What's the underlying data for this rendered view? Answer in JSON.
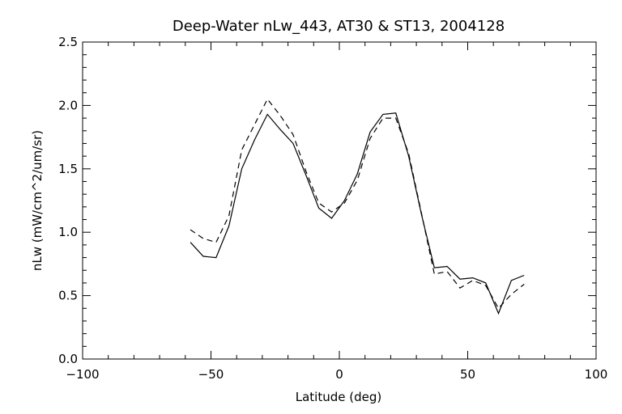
{
  "chart_data": {
    "type": "line",
    "title": "Deep-Water nLw_443, AT30 & ST13, 2004128",
    "xlabel": "Latitude (deg)",
    "ylabel": "nLw (mW/cm^2/um/sr)",
    "xlim": [
      -100,
      100
    ],
    "ylim": [
      0.0,
      2.5
    ],
    "xticks": [
      -100,
      -50,
      0,
      50,
      100
    ],
    "yticks": [
      0.0,
      0.5,
      1.0,
      1.5,
      2.0,
      2.5
    ],
    "xtick_labels": [
      "−100",
      "−50",
      "0",
      "50",
      "100"
    ],
    "ytick_labels": [
      "0.0",
      "0.5",
      "1.0",
      "1.5",
      "2.0",
      "2.5"
    ],
    "grid": false,
    "legend": "none",
    "series": [
      {
        "style": "solid",
        "x": [
          -58,
          -53,
          -48,
          -43,
          -38,
          -33,
          -28,
          -23,
          -18,
          -13,
          -8,
          -3,
          2,
          7,
          12,
          17,
          22,
          27,
          32,
          37,
          42,
          47,
          52,
          57,
          62,
          67,
          72
        ],
        "y": [
          0.92,
          0.81,
          0.8,
          1.05,
          1.5,
          1.73,
          1.93,
          1.81,
          1.7,
          1.45,
          1.19,
          1.11,
          1.25,
          1.46,
          1.79,
          1.93,
          1.94,
          1.6,
          1.14,
          0.72,
          0.73,
          0.63,
          0.64,
          0.6,
          0.36,
          0.62,
          0.66
        ]
      },
      {
        "style": "dashed",
        "x": [
          -58,
          -53,
          -48,
          -43,
          -38,
          -33,
          -28,
          -23,
          -18,
          -13,
          -8,
          -3,
          2,
          7,
          12,
          17,
          22,
          27,
          32,
          37,
          42,
          47,
          52,
          57,
          62,
          67,
          72
        ],
        "y": [
          1.02,
          0.95,
          0.92,
          1.13,
          1.65,
          1.85,
          2.05,
          1.92,
          1.77,
          1.48,
          1.23,
          1.16,
          1.23,
          1.41,
          1.74,
          1.9,
          1.9,
          1.62,
          1.15,
          0.67,
          0.69,
          0.56,
          0.62,
          0.58,
          0.4,
          0.51,
          0.59
        ]
      }
    ]
  }
}
